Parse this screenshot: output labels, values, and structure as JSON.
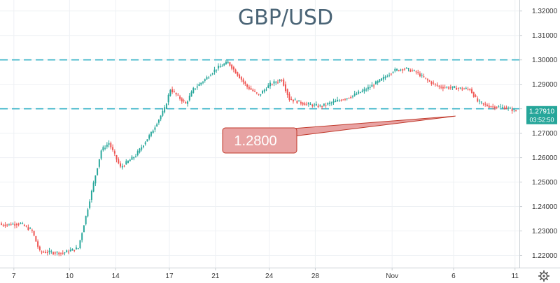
{
  "chart_data": {
    "type": "candlestick",
    "title": "GBP/USD",
    "xlabel": "",
    "ylabel": "",
    "ylim": [
      1.215,
      1.3245
    ],
    "y_ticks": [
      "1.22000",
      "1.23000",
      "1.24000",
      "1.25000",
      "1.26000",
      "1.27000",
      "1.28000",
      "1.29000",
      "1.30000",
      "1.31000",
      "1.32000"
    ],
    "x_ticks": [
      {
        "label": "7",
        "bar": 7
      },
      {
        "label": "10",
        "bar": 36
      },
      {
        "label": "14",
        "bar": 60
      },
      {
        "label": "17",
        "bar": 88
      },
      {
        "label": "21",
        "bar": 112
      },
      {
        "label": "24",
        "bar": 140
      },
      {
        "label": "28",
        "bar": 164
      },
      {
        "label": "Nov",
        "bar": 204
      },
      {
        "label": "6",
        "bar": 236
      },
      {
        "label": "11",
        "bar": 268
      }
    ],
    "grid": true,
    "up_color": "#26a69a",
    "down_color": "#ef5350",
    "level_lines": [
      {
        "price": 1.3,
        "color": "#3cb4c8"
      },
      {
        "price": 1.28,
        "color": "#3cb4c8"
      }
    ],
    "callout": {
      "text": "1.2800",
      "fill": "#e8a3a3",
      "stroke": "#c0392b",
      "pointer_bar": 237,
      "pointer_price": 1.277
    },
    "price_label": {
      "value": "1.27910",
      "countdown": "03:52:50",
      "color": "#26a69a",
      "price": 1.2791
    },
    "anchors": [
      [
        0,
        1.2325
      ],
      [
        10,
        1.233
      ],
      [
        16,
        1.23
      ],
      [
        20,
        1.2215
      ],
      [
        32,
        1.221
      ],
      [
        40,
        1.223
      ],
      [
        44,
        1.236
      ],
      [
        52,
        1.263
      ],
      [
        56,
        1.266
      ],
      [
        62,
        1.256
      ],
      [
        70,
        1.261
      ],
      [
        78,
        1.27
      ],
      [
        85,
        1.28
      ],
      [
        88,
        1.288
      ],
      [
        96,
        1.282
      ],
      [
        100,
        1.288
      ],
      [
        106,
        1.292
      ],
      [
        112,
        1.2965
      ],
      [
        118,
        1.299
      ],
      [
        124,
        1.293
      ],
      [
        128,
        1.289
      ],
      [
        134,
        1.2855
      ],
      [
        140,
        1.29
      ],
      [
        146,
        1.292
      ],
      [
        150,
        1.284
      ],
      [
        158,
        1.282
      ],
      [
        166,
        1.281
      ],
      [
        174,
        1.283
      ],
      [
        182,
        1.285
      ],
      [
        190,
        1.288
      ],
      [
        198,
        1.292
      ],
      [
        204,
        1.2955
      ],
      [
        210,
        1.2965
      ],
      [
        216,
        1.295
      ],
      [
        222,
        1.2915
      ],
      [
        228,
        1.289
      ],
      [
        236,
        1.2885
      ],
      [
        244,
        1.288
      ],
      [
        248,
        1.283
      ],
      [
        254,
        1.281
      ],
      [
        262,
        1.2805
      ],
      [
        268,
        1.2791
      ]
    ]
  },
  "toolbar": {
    "settings_icon": "gear-icon"
  }
}
